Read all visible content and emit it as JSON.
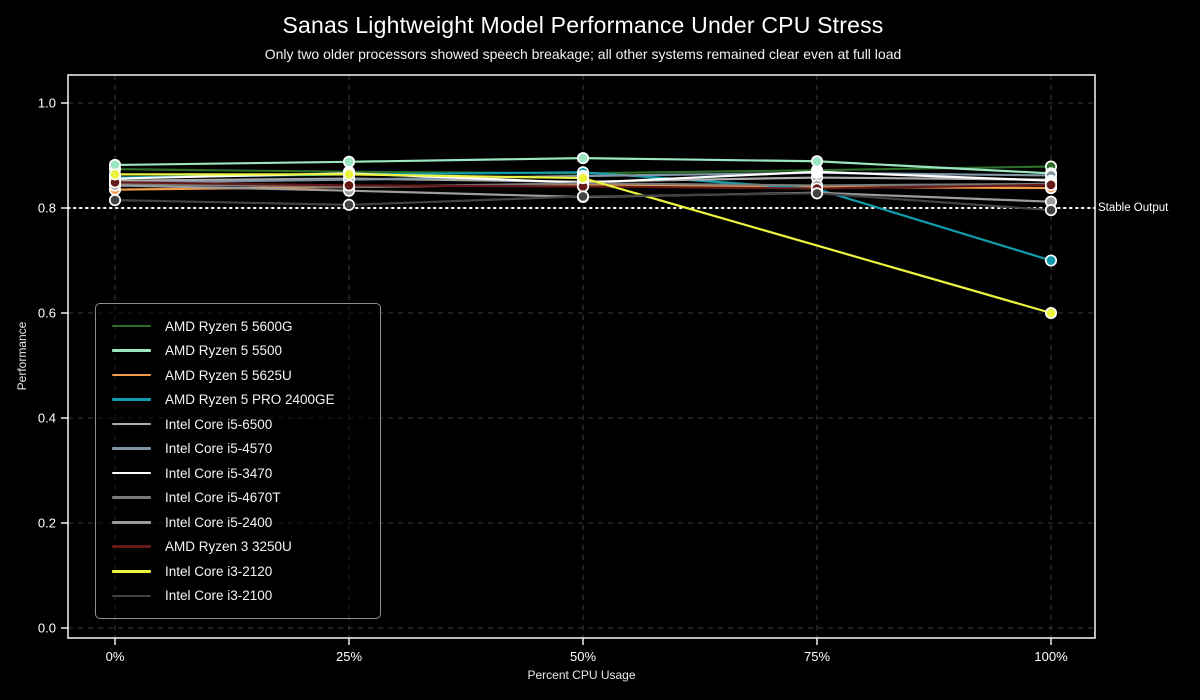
{
  "chart_data": {
    "type": "line",
    "title": "Sanas Lightweight Model Performance Under CPU Stress",
    "subtitle": "Only two older processors showed speech breakage; all other systems remained clear even at full load",
    "xlabel": "Percent CPU Usage",
    "ylabel": "Performance",
    "x_ticks": [
      0,
      25,
      50,
      75,
      100
    ],
    "x_tick_labels": [
      "0%",
      "25%",
      "50%",
      "75%",
      "100%"
    ],
    "y_ticks": [
      0.0,
      0.2,
      0.4,
      0.6,
      0.8,
      1.0
    ],
    "y_tick_labels": [
      "0.0",
      "0.2",
      "0.4",
      "0.6",
      "0.8",
      "1.0"
    ],
    "xlim": [
      -5,
      105
    ],
    "ylim": [
      -0.02,
      1.053
    ],
    "grid": true,
    "grid_style": "dashed",
    "legend_position": "center-left",
    "threshold": {
      "value": 0.8,
      "label": "Stable Output",
      "line_style": "dotted",
      "color": "#ffffff"
    },
    "series": [
      {
        "name": "AMD Ryzen 5 5600G",
        "color": "#2d6e28",
        "x": [
          0,
          25,
          50,
          75,
          100
        ],
        "values": [
          0.874,
          0.869,
          0.866,
          0.872,
          0.879
        ]
      },
      {
        "name": "AMD Ryzen 5 5500",
        "color": "#9be6c0",
        "x": [
          0,
          25,
          50,
          75,
          100
        ],
        "values": [
          0.882,
          0.888,
          0.895,
          0.889,
          0.866
        ]
      },
      {
        "name": "AMD Ryzen 5 5625U",
        "color": "#f39c47",
        "x": [
          0,
          25,
          50,
          75,
          100
        ],
        "values": [
          0.835,
          0.84,
          0.845,
          0.84,
          0.838
        ]
      },
      {
        "name": "AMD Ryzen 5 PRO 2400GE",
        "color": "#109cad",
        "x": [
          0,
          25,
          50,
          75,
          100
        ],
        "values": [
          0.858,
          0.864,
          0.868,
          0.836,
          0.7
        ]
      },
      {
        "name": "Intel Core i5-6500",
        "color": "#adadad",
        "x": [
          0,
          25,
          50,
          75,
          100
        ],
        "values": [
          0.852,
          0.856,
          0.85,
          0.858,
          0.854
        ]
      },
      {
        "name": "Intel Core i5-4570",
        "color": "#8096a4",
        "x": [
          0,
          25,
          50,
          75,
          100
        ],
        "values": [
          0.848,
          0.854,
          0.861,
          0.867,
          0.862
        ]
      },
      {
        "name": "Intel Core i5-3470",
        "color": "#ffffff",
        "x": [
          0,
          25,
          50,
          75,
          100
        ],
        "values": [
          0.856,
          0.866,
          0.848,
          0.869,
          0.852
        ]
      },
      {
        "name": "Intel Core i5-4670T",
        "color": "#7a7a7a",
        "x": [
          0,
          25,
          50,
          75,
          100
        ],
        "values": [
          0.846,
          0.84,
          0.847,
          0.843,
          0.846
        ]
      },
      {
        "name": "Intel Core i5-2400",
        "color": "#9c9c9c",
        "x": [
          0,
          25,
          50,
          75,
          100
        ],
        "values": [
          0.843,
          0.833,
          0.821,
          0.829,
          0.812
        ]
      },
      {
        "name": "AMD Ryzen 3 3250U",
        "color": "#661919",
        "x": [
          0,
          25,
          50,
          75,
          100
        ],
        "values": [
          0.849,
          0.843,
          0.841,
          0.837,
          0.844
        ]
      },
      {
        "name": "Intel Core i3-2120",
        "color": "#ecf23d",
        "x": [
          0,
          25,
          50,
          100
        ],
        "values": [
          0.864,
          0.864,
          0.857,
          0.6
        ]
      },
      {
        "name": "Intel Core i3-2100",
        "color": "#424242",
        "x": [
          0,
          25,
          50,
          75,
          100
        ],
        "values": [
          0.815,
          0.806,
          0.822,
          0.828,
          0.796
        ]
      }
    ],
    "colors": {
      "background": "#000000",
      "plot_border": "#e8e8e8",
      "gridline": "#3a3a3a",
      "tick_text": "#ffffff"
    }
  }
}
